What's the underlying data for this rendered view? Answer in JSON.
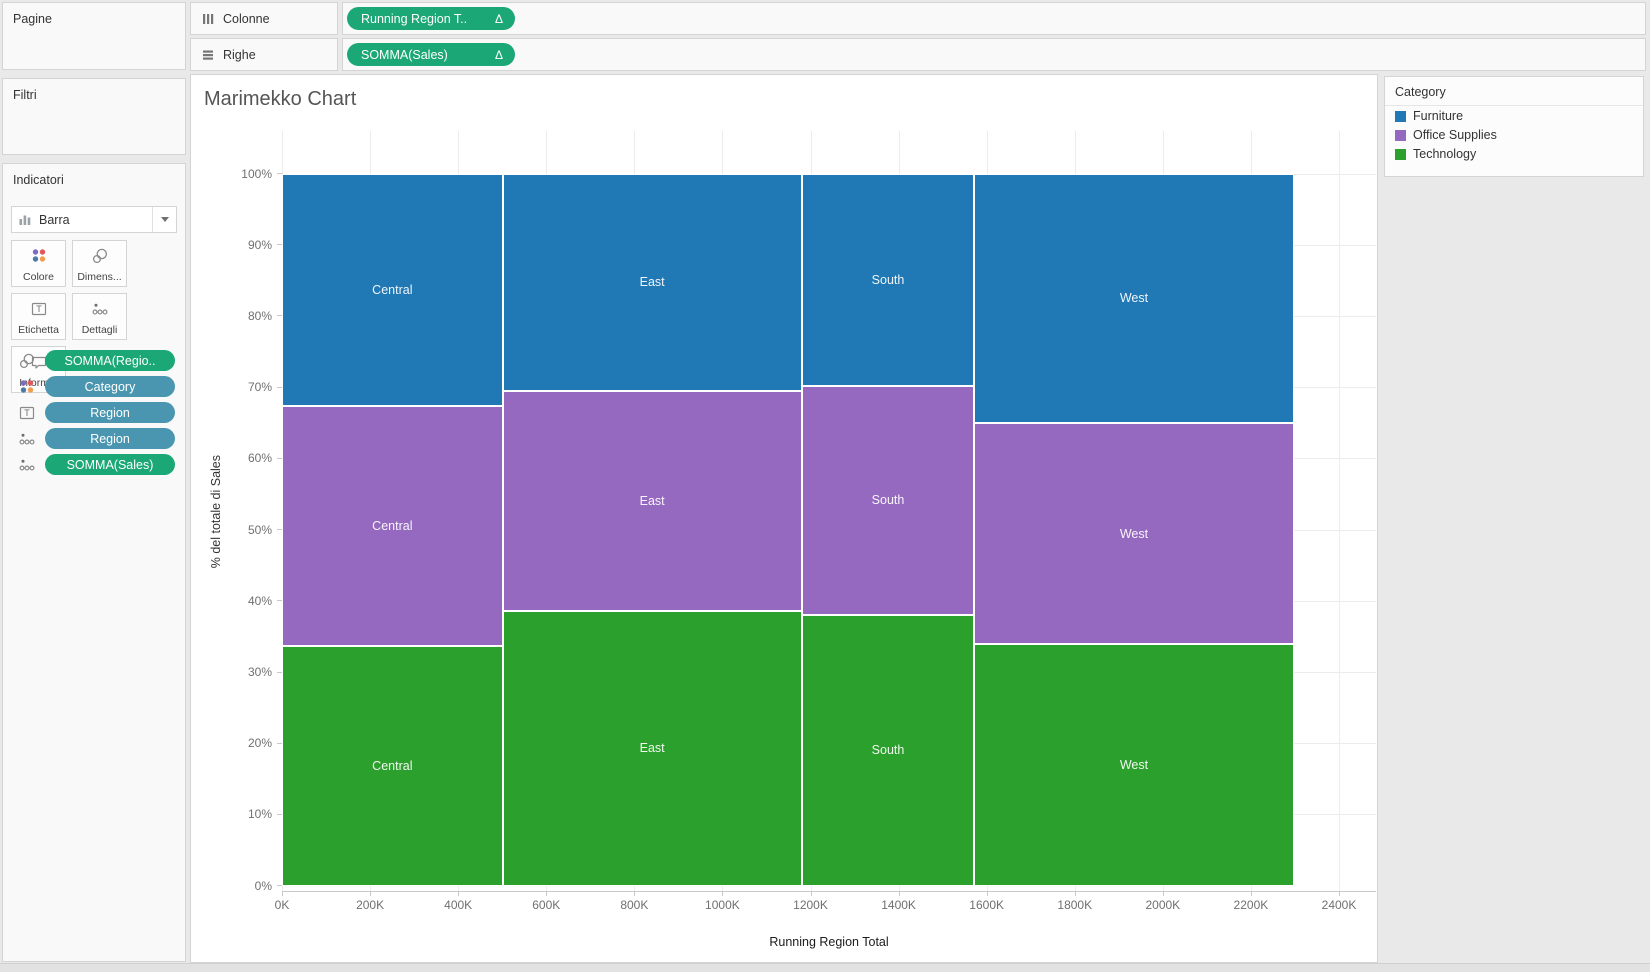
{
  "sidebar": {
    "pages_label": "Pagine",
    "filters_label": "Filtri",
    "marks": {
      "label": "Indicatori",
      "mark_type": {
        "label": "Barra",
        "icon": "bar-chart-icon"
      },
      "buttons": [
        {
          "label": "Colore",
          "icon": "color-icon"
        },
        {
          "label": "Dimens...",
          "icon": "size-icon"
        },
        {
          "label": "Etichetta",
          "icon": "label-icon"
        },
        {
          "label": "Dettagli",
          "icon": "detail-icon"
        },
        {
          "label": "Inform...",
          "icon": "tooltip-icon"
        }
      ],
      "pills": [
        {
          "label": "SOMMA(Regio..",
          "role": "measure",
          "icon": "size-icon"
        },
        {
          "label": "Category",
          "role": "dimension",
          "icon": "color-icon"
        },
        {
          "label": "Region",
          "role": "dimension",
          "icon": "label-icon"
        },
        {
          "label": "Region",
          "role": "dimension",
          "icon": "detail-icon"
        },
        {
          "label": "SOMMA(Sales)",
          "role": "measure",
          "icon": "detail-icon"
        }
      ]
    }
  },
  "shelves": {
    "columns": {
      "label": "Colonne",
      "icon": "columns-icon",
      "pill": {
        "label": "Running Region T..",
        "delta": "Δ"
      }
    },
    "rows": {
      "label": "Righe",
      "icon": "rows-icon",
      "pill": {
        "label": "SOMMA(Sales)",
        "delta": "Δ"
      }
    }
  },
  "colors": {
    "measure_pill": "#1CA876",
    "dimension_pill": "#4A96B0",
    "furniture": "#2078B4",
    "office_supplies": "#9669C1",
    "technology": "#2CA02C"
  },
  "chart_data": {
    "type": "marimekko",
    "title": "Marimekko Chart",
    "xlabel": "Running Region Total",
    "ylabel": "% del totale di Sales",
    "x_unit": "K (thousands of Sales)",
    "xlim_k": [
      0,
      2400
    ],
    "ylim_pct": [
      0,
      100
    ],
    "grid": true,
    "axis": {
      "pane_max_k": 2484,
      "top_pad_pct": 5.6,
      "span_pct": 93.7
    },
    "x_ticks": [
      {
        "k": 0,
        "label": "0K"
      },
      {
        "k": 200,
        "label": "200K"
      },
      {
        "k": 400,
        "label": "400K"
      },
      {
        "k": 600,
        "label": "600K"
      },
      {
        "k": 800,
        "label": "800K"
      },
      {
        "k": 1000,
        "label": "1000K"
      },
      {
        "k": 1200,
        "label": "1200K"
      },
      {
        "k": 1400,
        "label": "1400K"
      },
      {
        "k": 1600,
        "label": "1600K"
      },
      {
        "k": 1800,
        "label": "1800K"
      },
      {
        "k": 2000,
        "label": "2000K"
      },
      {
        "k": 2200,
        "label": "2200K"
      },
      {
        "k": 2400,
        "label": "2400K"
      }
    ],
    "y_ticks": [
      {
        "pct": 0,
        "label": "0%"
      },
      {
        "pct": 10,
        "label": "10%"
      },
      {
        "pct": 20,
        "label": "20%"
      },
      {
        "pct": 30,
        "label": "30%"
      },
      {
        "pct": 40,
        "label": "40%"
      },
      {
        "pct": 50,
        "label": "50%"
      },
      {
        "pct": 60,
        "label": "60%"
      },
      {
        "pct": 70,
        "label": "70%"
      },
      {
        "pct": 80,
        "label": "80%"
      },
      {
        "pct": 90,
        "label": "90%"
      },
      {
        "pct": 100,
        "label": "100%"
      }
    ],
    "legend": {
      "title": "Category",
      "position": "top-right",
      "entries": [
        {
          "label": "Furniture",
          "color": "#2078B4"
        },
        {
          "label": "Office Supplies",
          "color": "#9669C1"
        },
        {
          "label": "Technology",
          "color": "#2CA02C"
        }
      ]
    },
    "columns": [
      {
        "region": "Central",
        "x_start_k": 0,
        "x_end_k": 501,
        "segments": [
          {
            "category": "Technology",
            "from_pct": 0,
            "to_pct": 33.7
          },
          {
            "category": "Office Supplies",
            "from_pct": 33.7,
            "to_pct": 67.4
          },
          {
            "category": "Furniture",
            "from_pct": 67.4,
            "to_pct": 100
          }
        ]
      },
      {
        "region": "East",
        "x_start_k": 501,
        "x_end_k": 1180,
        "segments": [
          {
            "category": "Technology",
            "from_pct": 0,
            "to_pct": 38.6
          },
          {
            "category": "Office Supplies",
            "from_pct": 38.6,
            "to_pct": 69.5
          },
          {
            "category": "Furniture",
            "from_pct": 69.5,
            "to_pct": 100
          }
        ]
      },
      {
        "region": "South",
        "x_start_k": 1180,
        "x_end_k": 1572,
        "segments": [
          {
            "category": "Technology",
            "from_pct": 0,
            "to_pct": 38.0
          },
          {
            "category": "Office Supplies",
            "from_pct": 38.0,
            "to_pct": 70.2
          },
          {
            "category": "Furniture",
            "from_pct": 70.2,
            "to_pct": 100
          }
        ]
      },
      {
        "region": "West",
        "x_start_k": 1572,
        "x_end_k": 2297,
        "segments": [
          {
            "category": "Technology",
            "from_pct": 0,
            "to_pct": 33.9
          },
          {
            "category": "Office Supplies",
            "from_pct": 33.9,
            "to_pct": 65.0
          },
          {
            "category": "Furniture",
            "from_pct": 65.0,
            "to_pct": 100
          }
        ]
      }
    ]
  }
}
